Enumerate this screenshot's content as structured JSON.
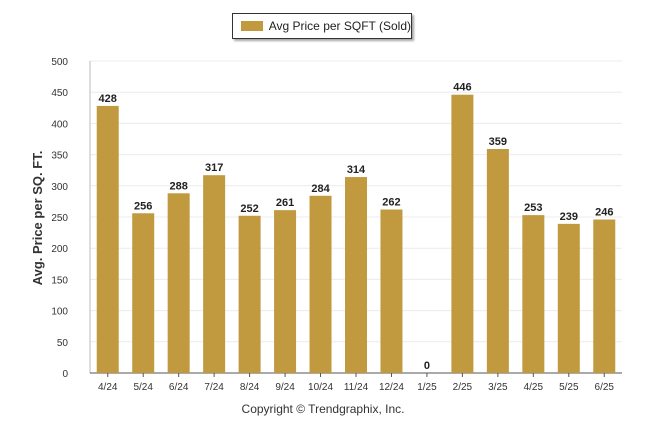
{
  "legend": {
    "label": "Avg Price per SQFT (Sold)"
  },
  "footer": {
    "copyright": "Copyright © Trendgraphix, Inc."
  },
  "colors": {
    "bar": "#c19a3f",
    "grid": "#ececec",
    "axis": "#555555",
    "text": "#222222"
  },
  "chart_data": {
    "type": "bar",
    "title": "",
    "xlabel": "",
    "ylabel": "Avg. Price per SQ. FT.",
    "categories": [
      "4/24",
      "5/24",
      "6/24",
      "7/24",
      "8/24",
      "9/24",
      "10/24",
      "11/24",
      "12/24",
      "1/25",
      "2/25",
      "3/25",
      "4/25",
      "5/25",
      "6/25"
    ],
    "series": [
      {
        "name": "Avg Price per SQFT (Sold)",
        "values": [
          428,
          256,
          288,
          317,
          252,
          261,
          284,
          314,
          262,
          0,
          446,
          359,
          253,
          239,
          246
        ]
      }
    ],
    "ylim": [
      0,
      500
    ],
    "yticks": [
      0,
      50,
      100,
      150,
      200,
      250,
      300,
      350,
      400,
      450,
      500
    ],
    "grid": true,
    "data_labels": true,
    "legend_position": "top-center"
  }
}
